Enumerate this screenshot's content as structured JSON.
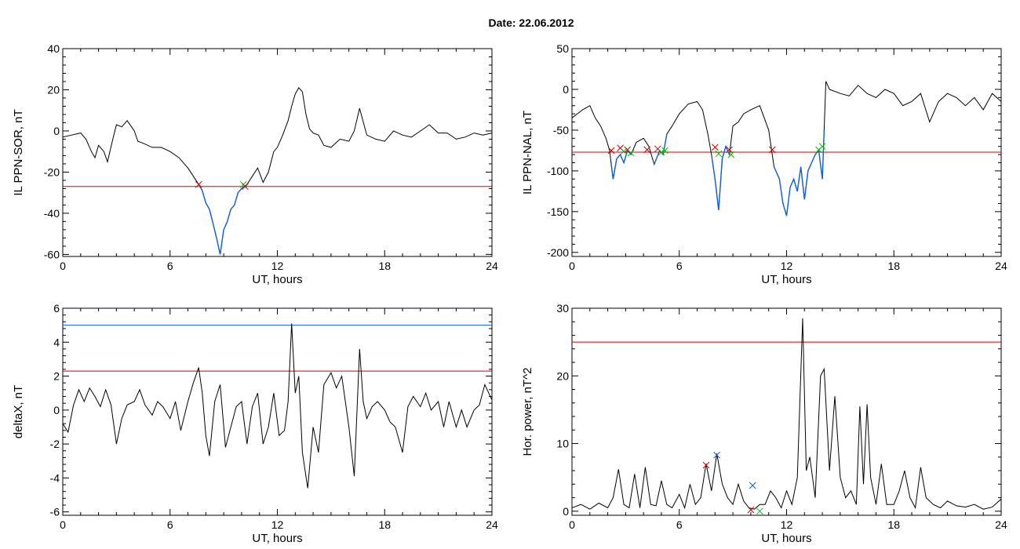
{
  "figure_title": "Date:  22.06.2012",
  "chart_data": [
    {
      "type": "line",
      "xlabel": "UT, hours",
      "ylabel": "IL PPN-SOR, nT",
      "xlim": [
        0,
        24
      ],
      "ylim": [
        -61,
        40
      ],
      "xticks": [
        0,
        6,
        12,
        18,
        24
      ],
      "yticks": [
        -60,
        -40,
        -20,
        0,
        20,
        40
      ],
      "x": [
        0,
        0.5,
        1,
        1.3,
        1.6,
        1.8,
        2.0,
        2.3,
        2.5,
        2.8,
        3.0,
        3.3,
        3.6,
        4.0,
        4.2,
        4.5,
        5.0,
        5.5,
        6.0,
        6.5,
        7.0,
        7.3,
        7.6,
        7.8,
        8.0,
        8.2,
        8.4,
        8.6,
        8.8,
        9.0,
        9.2,
        9.4,
        9.6,
        9.8,
        10.0,
        10.3,
        10.6,
        10.9,
        11.2,
        11.5,
        11.8,
        12.0,
        12.3,
        12.6,
        12.8,
        13.0,
        13.2,
        13.4,
        13.6,
        13.8,
        14.0,
        14.3,
        14.6,
        15.0,
        15.5,
        16.0,
        16.3,
        16.6,
        17.0,
        17.5,
        18.0,
        18.5,
        19.0,
        19.5,
        20.0,
        20.5,
        21.0,
        21.5,
        22.0,
        22.5,
        23.0,
        23.5,
        24.0
      ],
      "y": [
        -3,
        -2,
        -1,
        -4,
        -10,
        -13,
        -7,
        -10,
        -15,
        -4,
        3,
        2,
        5,
        0,
        -5,
        -6,
        -8,
        -8,
        -10,
        -13,
        -18,
        -22,
        -26,
        -29,
        -35,
        -38,
        -45,
        -52,
        -60,
        -48,
        -44,
        -38,
        -36,
        -30,
        -28,
        -26,
        -22,
        -18,
        -25,
        -20,
        -10,
        -8,
        -2,
        5,
        12,
        18,
        21,
        19,
        8,
        1,
        -1,
        -2,
        -7,
        -8,
        -4,
        -5,
        0,
        11,
        -2,
        -4,
        -5,
        0,
        -2,
        -3,
        0,
        3,
        -1,
        -1,
        -4,
        -3,
        -1,
        -2,
        -1
      ],
      "threshold": -27,
      "threshold_color": "#d00000",
      "highlight_color": "#1060d0",
      "highlight_x_range": [
        7.6,
        10.2
      ],
      "markers": [
        {
          "x": 7.6,
          "y": -26,
          "color": "#d00000"
        },
        {
          "x": 10.1,
          "y": -26,
          "color": "#00c000"
        },
        {
          "x": 10.2,
          "y": -27,
          "color": "#d00000"
        }
      ]
    },
    {
      "type": "line",
      "xlabel": "UT, hours",
      "ylabel": "IL PPN-NAL, nT",
      "xlim": [
        0,
        24
      ],
      "ylim": [
        -205,
        50
      ],
      "xticks": [
        0,
        6,
        12,
        18,
        24
      ],
      "yticks": [
        -200,
        -150,
        -100,
        -50,
        0,
        50
      ],
      "x": [
        0,
        0.3,
        0.6,
        1.0,
        1.3,
        1.6,
        1.9,
        2.1,
        2.3,
        2.5,
        2.7,
        2.9,
        3.1,
        3.3,
        3.6,
        4.0,
        4.3,
        4.6,
        4.9,
        5.1,
        5.3,
        5.6,
        6.0,
        6.5,
        7.0,
        7.3,
        7.6,
        7.8,
        8.0,
        8.2,
        8.4,
        8.6,
        8.8,
        9.0,
        9.3,
        9.6,
        10.0,
        10.5,
        11.0,
        11.3,
        11.6,
        11.8,
        12.0,
        12.2,
        12.4,
        12.6,
        12.8,
        13.0,
        13.2,
        13.4,
        13.6,
        13.8,
        14.0,
        14.2,
        14.4,
        15.0,
        15.5,
        16.0,
        16.5,
        17.0,
        17.5,
        18.0,
        18.5,
        19.0,
        19.5,
        20.0,
        20.5,
        21.0,
        21.5,
        22.0,
        22.5,
        23.0,
        23.5,
        24.0
      ],
      "y": [
        -35,
        -30,
        -25,
        -20,
        -35,
        -45,
        -60,
        -75,
        -110,
        -85,
        -80,
        -90,
        -75,
        -80,
        -65,
        -60,
        -70,
        -92,
        -75,
        -80,
        -55,
        -45,
        -30,
        -18,
        -15,
        -25,
        -55,
        -80,
        -110,
        -148,
        -85,
        -70,
        -80,
        -45,
        -40,
        -30,
        -25,
        -20,
        -50,
        -95,
        -110,
        -140,
        -155,
        -120,
        -110,
        -125,
        -95,
        -135,
        -100,
        -90,
        -80,
        -75,
        -110,
        10,
        0,
        -5,
        -8,
        5,
        -5,
        -10,
        0,
        -5,
        -20,
        -15,
        -5,
        -40,
        -15,
        -5,
        -10,
        -20,
        -10,
        -25,
        -5,
        -15
      ],
      "threshold": -77,
      "threshold_color": "#d00000",
      "highlight_color": "#1060d0",
      "highlight_x_ranges": [
        [
          2.2,
          3.4
        ],
        [
          4.6,
          5.3
        ],
        [
          7.8,
          8.8
        ],
        [
          11.3,
          14.1
        ]
      ],
      "markers": [
        {
          "x": 2.2,
          "y": -75,
          "color": "#d00000"
        },
        {
          "x": 2.7,
          "y": -72,
          "color": "#d00000"
        },
        {
          "x": 2.9,
          "y": -76,
          "color": "#00c000"
        },
        {
          "x": 3.1,
          "y": -74,
          "color": "#d00000"
        },
        {
          "x": 3.3,
          "y": -78,
          "color": "#00c000"
        },
        {
          "x": 4.2,
          "y": -74,
          "color": "#d00000"
        },
        {
          "x": 4.8,
          "y": -73,
          "color": "#d00000"
        },
        {
          "x": 5.0,
          "y": -77,
          "color": "#00c000"
        },
        {
          "x": 5.2,
          "y": -75,
          "color": "#00c000"
        },
        {
          "x": 8.0,
          "y": -71,
          "color": "#d00000"
        },
        {
          "x": 8.2,
          "y": -79,
          "color": "#00c000"
        },
        {
          "x": 8.8,
          "y": -74,
          "color": "#d00000"
        },
        {
          "x": 8.9,
          "y": -80,
          "color": "#00c000"
        },
        {
          "x": 11.2,
          "y": -74,
          "color": "#d00000"
        },
        {
          "x": 13.8,
          "y": -74,
          "color": "#00c000"
        },
        {
          "x": 14.0,
          "y": -70,
          "color": "#00c000"
        }
      ]
    },
    {
      "type": "line",
      "xlabel": "UT, hours",
      "ylabel": "deltaX, nT",
      "xlim": [
        0,
        24
      ],
      "ylim": [
        -6.2,
        6
      ],
      "xticks": [
        0,
        6,
        12,
        18,
        24
      ],
      "yticks": [
        -6,
        -4,
        -2,
        0,
        2,
        4,
        6
      ],
      "x": [
        0,
        0.3,
        0.6,
        0.9,
        1.2,
        1.5,
        1.8,
        2.1,
        2.4,
        2.7,
        3.0,
        3.3,
        3.6,
        4.0,
        4.3,
        4.6,
        5.0,
        5.3,
        5.6,
        6.0,
        6.3,
        6.6,
        7.0,
        7.3,
        7.6,
        7.8,
        8.0,
        8.2,
        8.5,
        8.8,
        9.1,
        9.4,
        9.7,
        10.0,
        10.3,
        10.6,
        10.9,
        11.2,
        11.5,
        11.8,
        12.1,
        12.4,
        12.6,
        12.8,
        13.0,
        13.2,
        13.4,
        13.7,
        14.0,
        14.3,
        14.6,
        15.0,
        15.3,
        15.6,
        16.0,
        16.3,
        16.6,
        16.8,
        17.0,
        17.3,
        17.6,
        18.0,
        18.3,
        18.6,
        19.0,
        19.3,
        19.6,
        20.0,
        20.3,
        20.6,
        21.0,
        21.3,
        21.6,
        22.0,
        22.3,
        22.6,
        23.0,
        23.3,
        23.6,
        24.0
      ],
      "y": [
        -0.8,
        -1.3,
        0.3,
        1.2,
        0.5,
        1.3,
        0.8,
        0.2,
        1.2,
        0.3,
        -2.0,
        -0.5,
        0.3,
        0.5,
        1.2,
        0.3,
        -0.3,
        0.5,
        0.2,
        -0.5,
        0.5,
        -1.2,
        0.5,
        1.6,
        2.5,
        1.0,
        -1.5,
        -2.7,
        0.5,
        1.5,
        -2.2,
        -1.0,
        0.2,
        0.5,
        -2.0,
        0.2,
        1.0,
        -2.0,
        -1.0,
        1.0,
        -1.5,
        -1.2,
        0.5,
        5.1,
        1.0,
        2.0,
        -2.5,
        -4.6,
        -1.0,
        -2.5,
        1.5,
        2.2,
        1.3,
        2.0,
        -1.0,
        -3.9,
        3.6,
        0.5,
        -0.5,
        0.2,
        0.5,
        0.0,
        -0.7,
        -1.0,
        -2.5,
        0.2,
        0.8,
        0.2,
        1.0,
        0.0,
        0.5,
        -1.0,
        0.5,
        -1.0,
        0.0,
        -1.0,
        0.0,
        0.3,
        1.5,
        0.6
      ],
      "thresholds": [
        {
          "value": 5.0,
          "color": "#1060d0"
        },
        {
          "value": 2.3,
          "color": "#d00000"
        }
      ]
    },
    {
      "type": "line",
      "xlabel": "UT, hours",
      "ylabel": "Hor. power, nT^2",
      "xlim": [
        0,
        24
      ],
      "ylim": [
        -0.6,
        30
      ],
      "xticks": [
        0,
        6,
        12,
        18,
        24
      ],
      "yticks": [
        0,
        10,
        20,
        30
      ],
      "x": [
        0,
        0.5,
        1.0,
        1.5,
        2.0,
        2.3,
        2.6,
        2.9,
        3.2,
        3.5,
        3.8,
        4.1,
        4.4,
        4.7,
        5.0,
        5.3,
        5.6,
        6.0,
        6.3,
        6.6,
        6.9,
        7.2,
        7.5,
        7.8,
        8.1,
        8.4,
        8.7,
        9.0,
        9.3,
        9.6,
        9.9,
        10.2,
        10.5,
        10.8,
        11.1,
        11.4,
        11.7,
        12.0,
        12.3,
        12.6,
        12.9,
        13.1,
        13.3,
        13.6,
        13.9,
        14.1,
        14.4,
        14.7,
        15.0,
        15.3,
        15.6,
        15.9,
        16.1,
        16.3,
        16.5,
        16.7,
        17.0,
        17.3,
        17.6,
        18.0,
        18.3,
        18.6,
        18.9,
        19.2,
        19.5,
        19.8,
        20.2,
        20.6,
        21.0,
        21.5,
        22.0,
        22.5,
        23.0,
        23.5,
        24.0
      ],
      "y": [
        0.5,
        1.0,
        0.3,
        1.2,
        0.5,
        2.0,
        6.2,
        1.0,
        0.5,
        5.5,
        0.5,
        6.5,
        1.0,
        0.8,
        4.5,
        1.0,
        0.5,
        2.5,
        0.5,
        4.0,
        1.0,
        2.0,
        7.0,
        3.0,
        8.5,
        4.0,
        2.0,
        1.0,
        4.0,
        1.5,
        0.5,
        0.3,
        1.0,
        1.0,
        3.0,
        2.0,
        0.5,
        3.0,
        1.0,
        5.0,
        28.5,
        6.0,
        8.0,
        2.0,
        20.0,
        21.0,
        6.0,
        17.0,
        5.0,
        2.0,
        3.0,
        1.0,
        15.5,
        4.0,
        15.8,
        5.0,
        1.0,
        7.0,
        1.0,
        1.0,
        3.0,
        6.0,
        2.0,
        0.5,
        6.5,
        2.0,
        1.0,
        0.5,
        1.5,
        0.8,
        0.6,
        1.0,
        0.3,
        0.6,
        1.8
      ],
      "threshold": 25.0,
      "threshold_color": "#d00000",
      "markers": [
        {
          "x": 7.5,
          "y": 6.8,
          "color": "#d00000"
        },
        {
          "x": 8.1,
          "y": 8.3,
          "color": "#1060d0"
        },
        {
          "x": 10.1,
          "y": 3.8,
          "color": "#1060d0"
        },
        {
          "x": 10.0,
          "y": 0.2,
          "color": "#d00000"
        },
        {
          "x": 10.5,
          "y": 0.0,
          "color": "#00c000"
        }
      ]
    }
  ]
}
